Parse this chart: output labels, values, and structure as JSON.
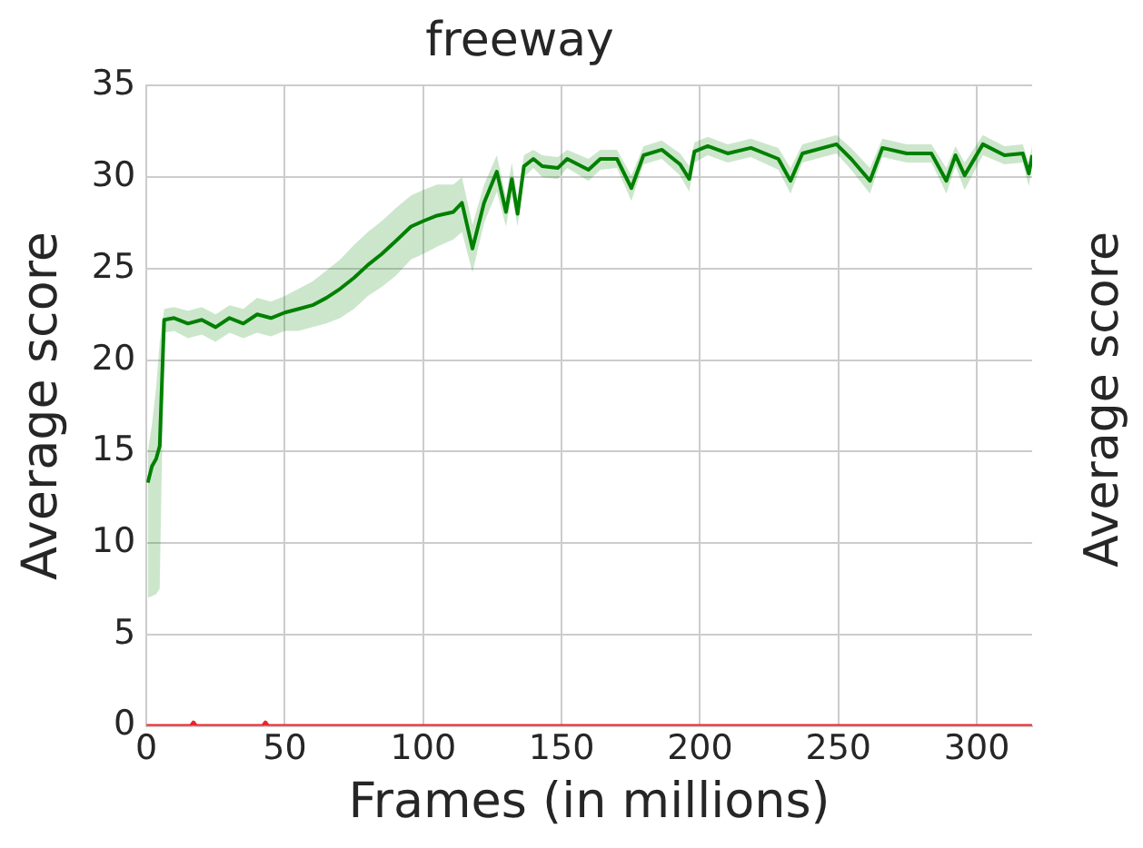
{
  "chart_data": {
    "type": "line",
    "title": "freeway",
    "xlabel": "Frames (in millions)",
    "ylabel": "Average score",
    "annotations": [
      "Average score"
    ],
    "xlim": [
      0,
      320
    ],
    "xticks": [
      0,
      50,
      100,
      150,
      200,
      250,
      300
    ],
    "ylim": [
      0,
      35
    ],
    "yticks": [
      0,
      5,
      10,
      15,
      20,
      25,
      30,
      35
    ],
    "grid": true,
    "legend": false,
    "marker": "none",
    "line_style": "solid",
    "series": [
      {
        "color": "#008000",
        "x": [
          0.5,
          2,
          3.5,
          4.8,
          6.4,
          10,
          15,
          20,
          25,
          30,
          35,
          40,
          45,
          50,
          55,
          60,
          65,
          70,
          75,
          80,
          85,
          90,
          95.6,
          100,
          105,
          110.9,
          114,
          117.8,
          122,
          126.6,
          129.9,
          132,
          134.1,
          136.4,
          139.8,
          143,
          148.6,
          152,
          159.7,
          164,
          170,
          175.2,
          179.6,
          186.2,
          192.8,
          196.1,
          198,
          202.8,
          210,
          218.4,
          228.3,
          232.7,
          237,
          249.3,
          254.6,
          261.4,
          265.9,
          274.7,
          283.6,
          289,
          292.3,
          295.6,
          302.2,
          310,
          316.6,
          318.8,
          320
        ],
        "values": [
          13.3,
          14.2,
          14.6,
          15.3,
          22.2,
          22.3,
          22.0,
          22.2,
          21.8,
          22.3,
          22.0,
          22.5,
          22.3,
          22.6,
          22.8,
          23.0,
          23.4,
          23.9,
          24.5,
          25.2,
          25.8,
          26.5,
          27.3,
          27.6,
          27.9,
          28.1,
          28.6,
          26.1,
          28.6,
          30.3,
          28.1,
          29.9,
          28.0,
          30.6,
          31.0,
          30.6,
          30.5,
          31.0,
          30.4,
          31.0,
          31.0,
          29.4,
          31.2,
          31.5,
          30.7,
          29.9,
          31.4,
          31.7,
          31.3,
          31.6,
          31.0,
          29.8,
          31.3,
          31.8,
          31.0,
          29.8,
          31.6,
          31.3,
          31.3,
          29.8,
          31.2,
          30.1,
          31.8,
          31.2,
          31.3,
          30.2,
          31.2
        ],
        "lower": [
          7.0,
          7.1,
          7.2,
          7.5,
          21.5,
          21.6,
          21.2,
          21.4,
          21.0,
          21.5,
          21.2,
          21.5,
          21.3,
          21.6,
          21.6,
          21.8,
          22.0,
          22.3,
          22.8,
          23.5,
          24.0,
          24.6,
          25.5,
          25.8,
          26.2,
          26.6,
          27.0,
          24.8,
          27.5,
          29.2,
          27.3,
          29.0,
          27.3,
          30.0,
          30.5,
          30.0,
          29.9,
          30.5,
          29.8,
          30.4,
          30.5,
          28.7,
          30.7,
          31.0,
          30.1,
          29.2,
          30.8,
          31.2,
          30.8,
          31.1,
          30.4,
          29.1,
          30.8,
          31.3,
          30.4,
          29.1,
          31.1,
          30.8,
          30.8,
          29.1,
          30.6,
          29.3,
          31.2,
          30.7,
          30.8,
          29.5,
          30.6
        ],
        "upper": [
          15.0,
          16.5,
          18.5,
          21.0,
          22.8,
          22.9,
          22.7,
          22.9,
          22.5,
          23.0,
          22.8,
          23.4,
          23.2,
          23.5,
          23.9,
          24.3,
          24.9,
          25.5,
          26.3,
          27.0,
          27.6,
          28.3,
          29.0,
          29.3,
          29.6,
          29.6,
          30.0,
          27.4,
          29.6,
          31.2,
          28.9,
          30.8,
          28.8,
          31.2,
          31.5,
          31.2,
          31.1,
          31.5,
          31.0,
          31.5,
          31.5,
          30.1,
          31.7,
          32.0,
          31.3,
          30.6,
          31.9,
          32.2,
          31.8,
          32.1,
          31.6,
          30.5,
          31.8,
          32.3,
          31.6,
          30.5,
          32.1,
          31.8,
          31.8,
          30.5,
          31.7,
          30.8,
          32.3,
          31.7,
          31.8,
          30.8,
          31.7
        ]
      },
      {
        "color": "#e8262b",
        "x": [
          0,
          16,
          17,
          18,
          42,
          43,
          44,
          320
        ],
        "values": [
          0,
          0,
          0.2,
          0,
          0,
          0.2,
          0,
          0
        ]
      }
    ]
  }
}
